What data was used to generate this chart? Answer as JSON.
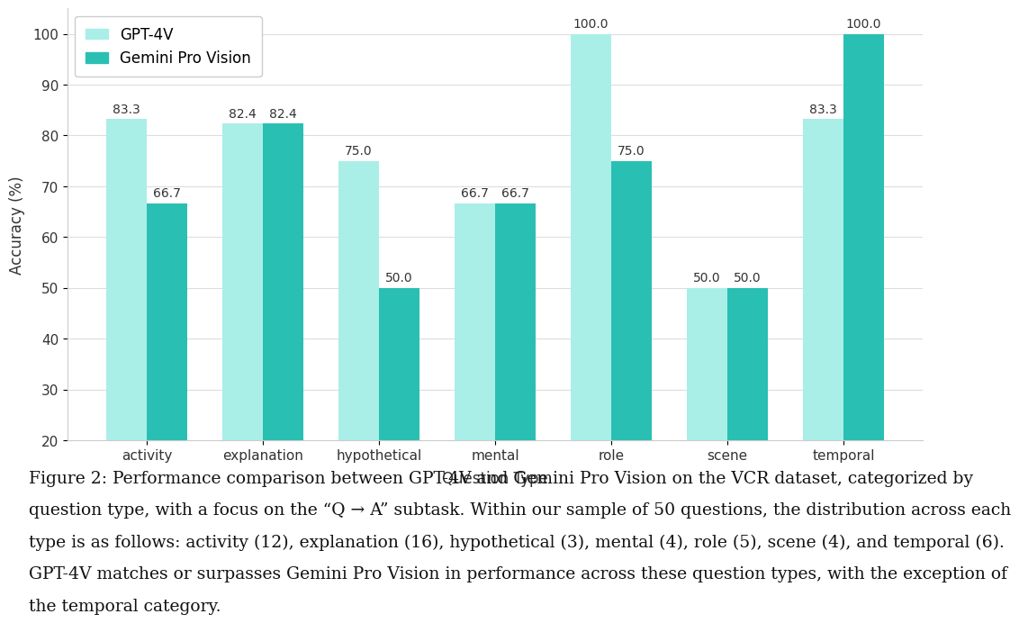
{
  "categories": [
    "activity",
    "explanation",
    "hypothetical",
    "mental",
    "role",
    "scene",
    "temporal"
  ],
  "gpt4v_values": [
    83.3,
    82.4,
    75.0,
    66.7,
    100.0,
    50.0,
    83.3
  ],
  "gemini_values": [
    66.7,
    82.4,
    50.0,
    66.7,
    75.0,
    50.0,
    100.0
  ],
  "gpt4v_color": "#AAEEE8",
  "gemini_color": "#2ABFB3",
  "xlabel": "Question Type",
  "ylabel": "Accuracy (%)",
  "ylim": [
    20,
    105
  ],
  "yticks": [
    20,
    30,
    40,
    50,
    60,
    70,
    80,
    90,
    100
  ],
  "legend_labels": [
    "GPT-4V",
    "Gemini Pro Vision"
  ],
  "bar_width": 0.35,
  "figure_bg": "#FFFFFF",
  "axes_bg": "#FFFFFF",
  "caption_line1": "Figure 2: Performance comparison between GPT-4V and Gemini Pro Vision on the VCR dataset, categorized by",
  "caption_line2": "question type, with a focus on the “Q → A” subtask. Within our sample of 50 questions, the distribution across each",
  "caption_line3": "type is as follows: activity (12), explanation (16), hypothetical (3), mental (4), role (5), scene (4), and temporal (6).",
  "caption_line4": "GPT-4V matches or surpasses Gemini Pro Vision in performance across these question types, with the exception of",
  "caption_line5": "the temporal category.",
  "label_fontsize": 12,
  "tick_fontsize": 11,
  "annotation_fontsize": 10,
  "caption_fontsize": 13.5,
  "legend_fontsize": 12
}
